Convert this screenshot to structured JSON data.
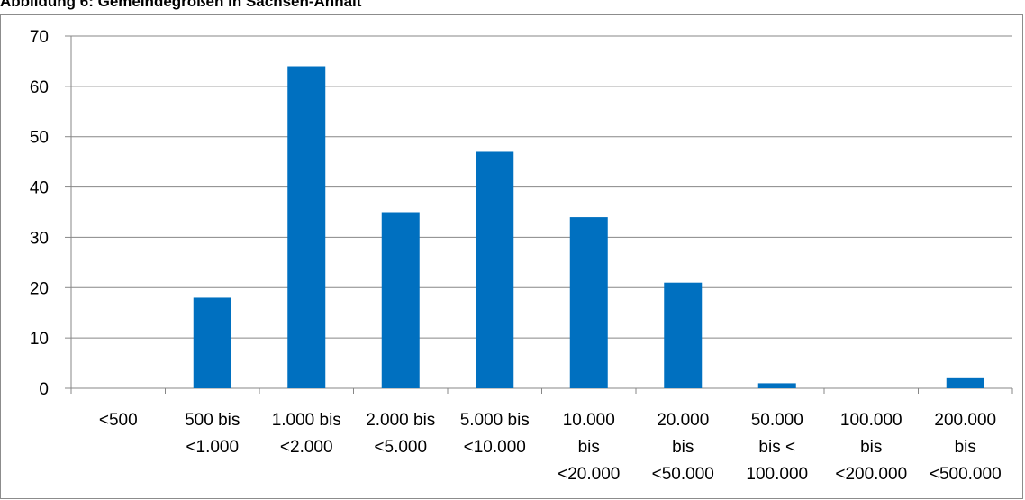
{
  "title": "Abbildung 6: Gemeindegrößen in Sachsen-Anhalt",
  "chart_data": {
    "type": "bar",
    "categories": [
      [
        "<500"
      ],
      [
        "500 bis",
        "<1.000"
      ],
      [
        "1.000 bis",
        "<2.000"
      ],
      [
        "2.000 bis",
        "<5.000"
      ],
      [
        "5.000 bis",
        "<10.000"
      ],
      [
        "10.000",
        "bis",
        "<20.000"
      ],
      [
        "20.000",
        "bis",
        "<50.000"
      ],
      [
        "50.000",
        "bis <",
        "100.000"
      ],
      [
        "100.000",
        "bis",
        "<200.000"
      ],
      [
        "200.000",
        "bis",
        "<500.000"
      ]
    ],
    "values": [
      0,
      18,
      64,
      35,
      47,
      34,
      21,
      1,
      0,
      2
    ],
    "ylim": [
      0,
      70
    ],
    "yticks": [
      0,
      10,
      20,
      30,
      40,
      50,
      60,
      70
    ],
    "grid": true,
    "legend": "none",
    "colors": {
      "bar": "#0070C0",
      "grid": "#878787",
      "axis": "#878787"
    }
  }
}
